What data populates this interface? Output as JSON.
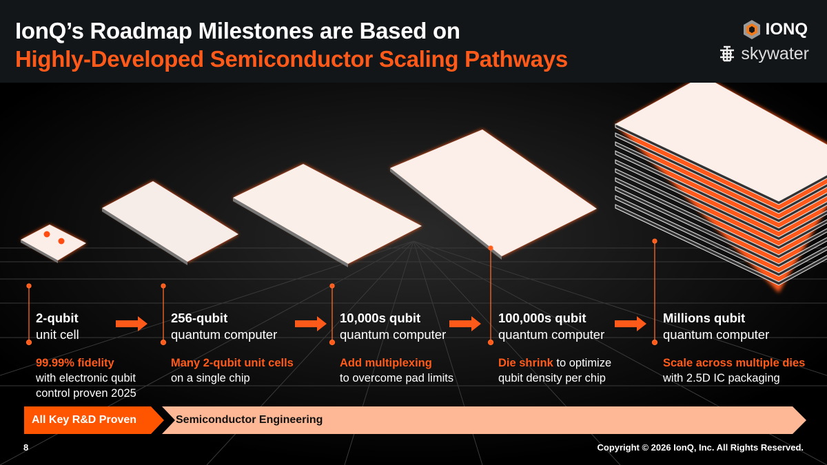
{
  "title_line1": "IonQ’s Roadmap Milestones are Based on",
  "title_line2": "Highly-Developed Semiconductor Scaling Pathways",
  "logos": {
    "ionq": "IONQ",
    "skywater": "skywater"
  },
  "milestones": [
    {
      "title": "2-qubit",
      "subtitle": "unit cell",
      "highlight": "99.99% fidelity",
      "desc1": "with electronic qubit",
      "desc2": "control proven 2025"
    },
    {
      "title": "256-qubit",
      "subtitle": "quantum computer",
      "highlight": "Many 2-qubit unit cells",
      "desc1": "on a single chip",
      "desc2": ""
    },
    {
      "title": "10,000s qubit",
      "subtitle": "quantum computer",
      "highlight": "Add multiplexing",
      "desc1": "to overcome pad limits",
      "desc2": ""
    },
    {
      "title": "100,000s qubit",
      "subtitle": "quantum computer",
      "highlight": "Die shrink",
      "highlight_rest": " to optimize",
      "desc1": "qubit density per chip",
      "desc2": ""
    },
    {
      "title": "Millions qubit",
      "subtitle": "quantum computer",
      "highlight": "Scale across multiple dies",
      "desc1": "with 2.5D IC packaging",
      "desc2": ""
    }
  ],
  "phase_bar": {
    "proven": "All Key R&D Proven",
    "engineering": "Semiconductor Engineering"
  },
  "footer": {
    "page": "8",
    "copyright": "Copyright © 2026 IonQ, Inc. All Rights Reserved."
  },
  "colors": {
    "accent": "#ff5a1a",
    "peach": "#ffb896",
    "header": "#131619"
  }
}
